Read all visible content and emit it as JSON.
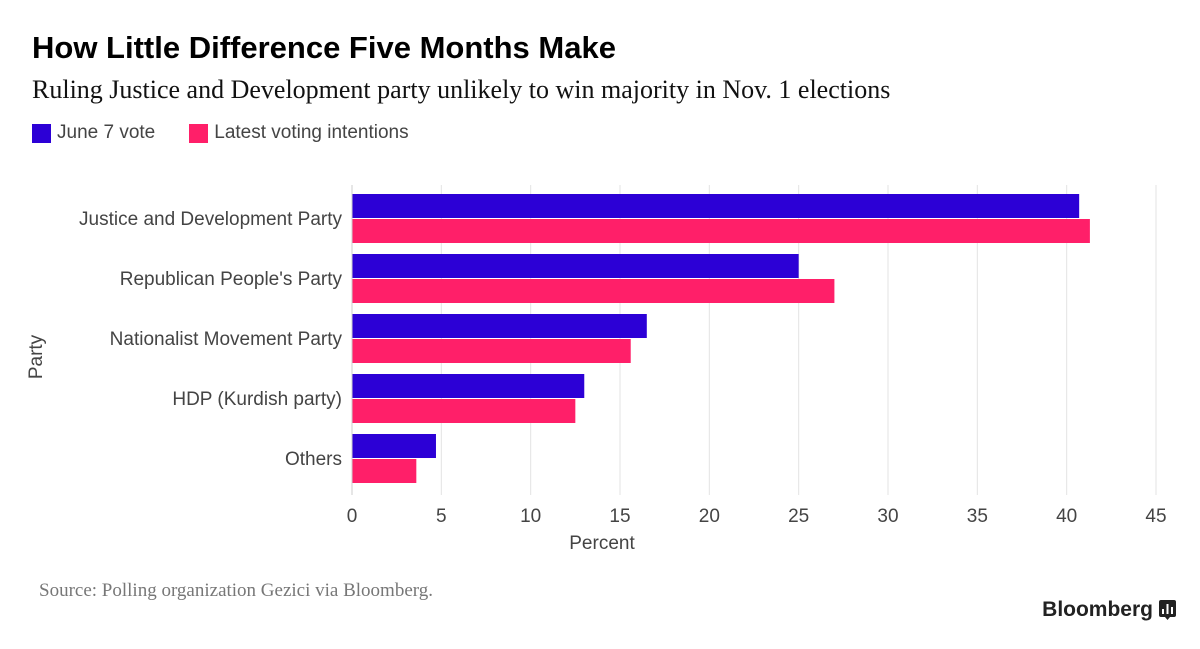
{
  "title": "How Little Difference Five Months Make",
  "subtitle": "Ruling Justice and Development party unlikely to win majority in Nov. 1 elections",
  "legend": [
    {
      "label": "June 7 vote",
      "color": "#2c00d6"
    },
    {
      "label": "Latest voting intentions",
      "color": "#ff1f69"
    }
  ],
  "source": "Source: Polling organization Gezici via Bloomberg.",
  "brand": "Bloomberg",
  "brand_icon": "bloomberg-chart-icon",
  "chart_data": {
    "type": "bar",
    "orientation": "horizontal",
    "categories": [
      "Justice and Development Party",
      "Republican People's Party",
      "Nationalist Movement Party",
      "HDP (Kurdish party)",
      "Others"
    ],
    "series": [
      {
        "name": "June 7 vote",
        "color": "#2c00d6",
        "values": [
          40.7,
          25.0,
          16.5,
          13.0,
          4.7
        ]
      },
      {
        "name": "Latest voting intentions",
        "color": "#ff1f69",
        "values": [
          41.3,
          27.0,
          15.6,
          12.5,
          3.6
        ]
      }
    ],
    "xlabel": "Percent",
    "ylabel": "Party",
    "xlim": [
      0,
      45
    ],
    "xticks": [
      0,
      5,
      10,
      15,
      20,
      25,
      30,
      35,
      40,
      45
    ],
    "grid": true,
    "legend_position": "top-left"
  }
}
